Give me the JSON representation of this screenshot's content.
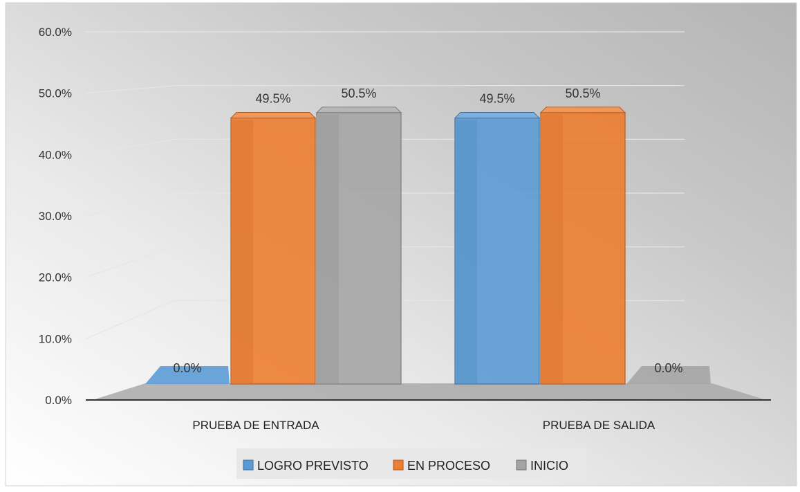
{
  "chart_data": {
    "type": "bar",
    "style": "3d-clustered-column",
    "categories": [
      "PRUEBA DE ENTRADA",
      "PRUEBA DE SALIDA"
    ],
    "series": [
      {
        "name": "LOGRO PREVISTO",
        "values": [
          0.0,
          49.5
        ],
        "labels": [
          "0.0%",
          "49.5%"
        ],
        "color": "#5b9bd5"
      },
      {
        "name": "EN PROCESO",
        "values": [
          49.5,
          50.5
        ],
        "labels": [
          "49.5%",
          "50.5%"
        ],
        "color": "#ed7d31"
      },
      {
        "name": "INICIO",
        "values": [
          50.5,
          0.0
        ],
        "labels": [
          "50.5%",
          "0.0%"
        ],
        "color": "#a5a5a5"
      }
    ],
    "y_ticks": [
      "0.0%",
      "10.0%",
      "20.0%",
      "30.0%",
      "40.0%",
      "50.0%",
      "60.0%"
    ],
    "ylim": [
      0,
      60
    ],
    "grid": true,
    "legend_position": "bottom"
  },
  "colors": {
    "background_light": "#ffffff",
    "background_dark": "#b9b9b9",
    "floor": "#a9a9a9",
    "gridline": "#e6e6e6",
    "legend_background": "#e8e8e8"
  }
}
